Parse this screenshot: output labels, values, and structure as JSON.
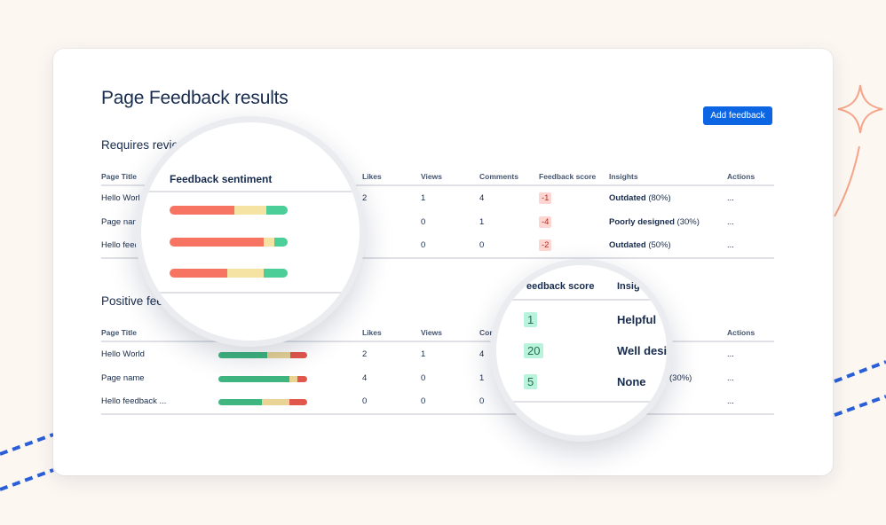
{
  "page": {
    "title": "Page Feedback results",
    "add_button": "Add feedback"
  },
  "columns": {
    "title": "Page Title",
    "sentiment": "Feedback sentiment",
    "likes": "Likes",
    "views": "Views",
    "comments": "Comments",
    "score": "Feedback score",
    "insights": "Insights",
    "actions": "Actions"
  },
  "section1": {
    "title": "Requires review",
    "rows": [
      {
        "title": "Hello World",
        "likes": "2",
        "views": "1",
        "comments": "4",
        "score": "-1",
        "insight_label": "Outdated",
        "insight_pct": "(80%)",
        "actions": "...",
        "sentiment": {
          "negative": 0.55,
          "neutral": 0.27,
          "positive": 0.18
        }
      },
      {
        "title": "Page name",
        "likes": "",
        "views": "0",
        "comments": "1",
        "score": "-4",
        "insight_label": "Poorly designed",
        "insight_pct": "(30%)",
        "actions": "...",
        "sentiment": {
          "negative": 0.8,
          "neutral": 0.09,
          "positive": 0.11
        }
      },
      {
        "title": "Hello feedback ...",
        "likes": "",
        "views": "0",
        "comments": "0",
        "score": "-2",
        "insight_label": "Outdated",
        "insight_pct": "(50%)",
        "actions": "...",
        "sentiment": {
          "negative": 0.49,
          "neutral": 0.31,
          "positive": 0.2
        }
      }
    ]
  },
  "section2": {
    "title": "Positive feedback",
    "rows": [
      {
        "title": "Hello World",
        "likes": "2",
        "views": "1",
        "comments": "4",
        "score": "1",
        "insight_label": "Helpful",
        "insight_pct": "",
        "actions": "...",
        "sentiment": {
          "positive": 0.55,
          "neutral": 0.26,
          "negative": 0.19
        }
      },
      {
        "title": "Page name",
        "likes": "4",
        "views": "0",
        "comments": "1",
        "score": "20",
        "insight_label": "Well designed",
        "insight_pct": "(30%)",
        "actions": "...",
        "sentiment": {
          "positive": 0.8,
          "neutral": 0.09,
          "negative": 0.11
        }
      },
      {
        "title": "Hello feedback ...",
        "likes": "0",
        "views": "0",
        "comments": "0",
        "score": "5",
        "insight_label": "None",
        "insight_pct": "",
        "actions": "...",
        "sentiment": {
          "positive": 0.49,
          "neutral": 0.31,
          "negative": 0.2
        }
      }
    ]
  },
  "magnifier_sentiment": {
    "header": "Feedback sentiment"
  },
  "magnifier_score": {
    "header_score": "eedback score",
    "header_insights": "Insig",
    "rows": [
      {
        "score": "1",
        "insight": "Helpful"
      },
      {
        "score": "20",
        "insight": "Well desig"
      },
      {
        "score": "5",
        "insight": "None"
      }
    ]
  },
  "colors": {
    "accent": "#0c66e4",
    "positive": "#4bce97",
    "neutral": "#f5e3a3",
    "negative": "#f87462",
    "decor": "#f5a58a",
    "dashes": "#2a5fd8"
  }
}
